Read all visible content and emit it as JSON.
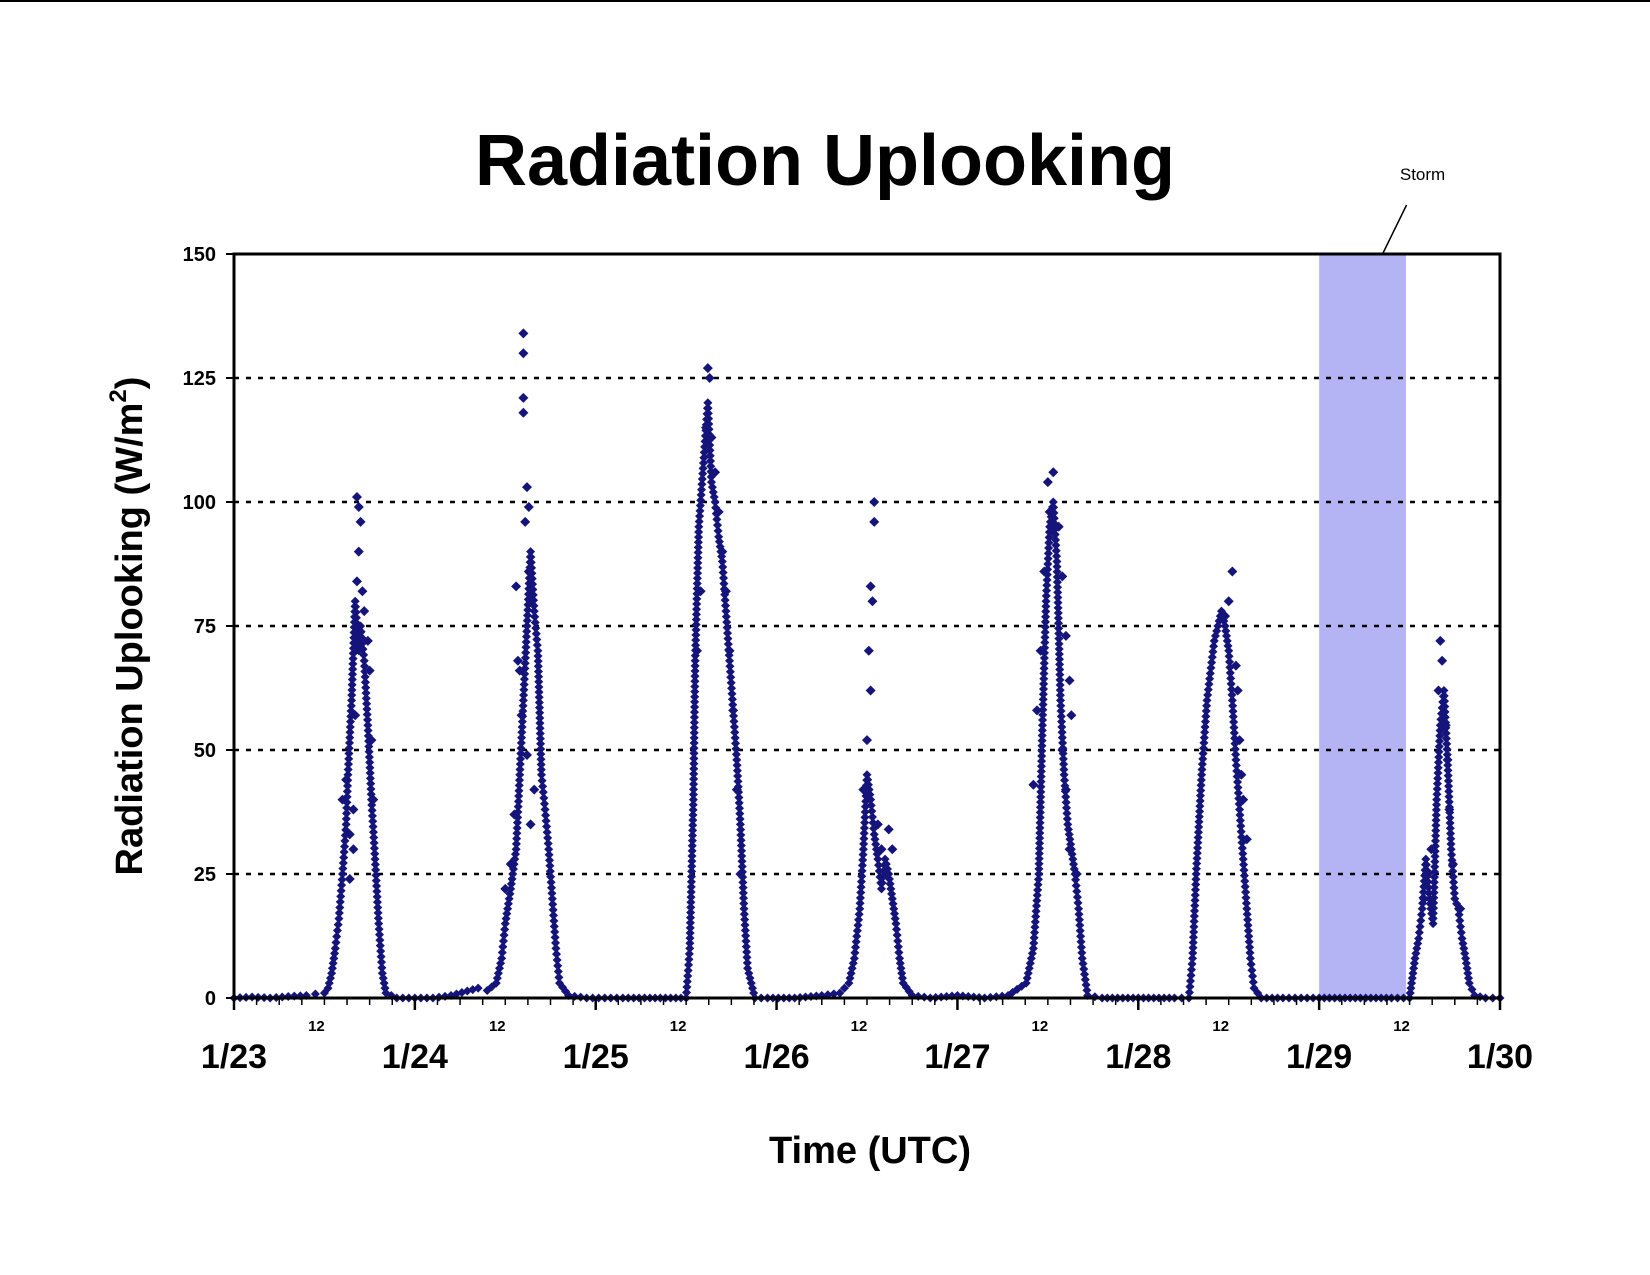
{
  "chart_data": {
    "type": "scatter",
    "title": "Radiation Uplooking",
    "xlabel": "Time (UTC)",
    "ylabel": "Radiation Uplooking (W/m",
    "ylabel_superscript": "2",
    "ylabel_close": ")",
    "ylim": [
      0,
      150
    ],
    "yticks": [
      "0",
      "25",
      "50",
      "75",
      "100",
      "125",
      "150"
    ],
    "y_grid": "dotted horizontal lines at each major tick",
    "xlim": [
      "1/23",
      "1/30"
    ],
    "x_major_ticks": [
      "1/23",
      "1/24",
      "1/25",
      "1/26",
      "1/27",
      "1/28",
      "1/29",
      "1/30"
    ],
    "x_minor_label": "12",
    "x_minor_label_count": 7,
    "marker": "diamond",
    "marker_color": "#14147a",
    "annotations": [
      {
        "text": "Storm",
        "type": "shaded-span",
        "x_start_day": 6.0,
        "x_end_day": 6.48,
        "color": "#b4b4f5"
      }
    ],
    "series": [
      {
        "x_day_start": "1/23",
        "points": [
          [
            0.0,
            0
          ],
          [
            0.1,
            0.2
          ],
          [
            0.2,
            0
          ],
          [
            0.3,
            0.3
          ],
          [
            0.4,
            0.5
          ],
          [
            0.45,
            0.8
          ],
          [
            0.5,
            1
          ],
          [
            0.52,
            2
          ],
          [
            0.54,
            5
          ],
          [
            0.56,
            10
          ],
          [
            0.58,
            16
          ],
          [
            0.6,
            25
          ],
          [
            0.62,
            35
          ],
          [
            0.63,
            45
          ],
          [
            0.65,
            60
          ],
          [
            0.67,
            80
          ],
          [
            0.69,
            70
          ],
          [
            0.7,
            75
          ],
          [
            0.72,
            68
          ],
          [
            0.74,
            55
          ],
          [
            0.76,
            40
          ],
          [
            0.78,
            28
          ],
          [
            0.8,
            15
          ],
          [
            0.82,
            5
          ],
          [
            0.84,
            1
          ],
          [
            0.9,
            0
          ],
          [
            1.0,
            0
          ],
          [
            1.1,
            0
          ],
          [
            1.2,
            0.5
          ],
          [
            1.35,
            2
          ],
          [
            1.4,
            1.5
          ],
          [
            1.45,
            3
          ],
          [
            1.48,
            8
          ],
          [
            1.5,
            15
          ],
          [
            1.53,
            22
          ],
          [
            1.56,
            30
          ],
          [
            1.58,
            45
          ],
          [
            1.6,
            60
          ],
          [
            1.62,
            75
          ],
          [
            1.64,
            90
          ],
          [
            1.66,
            78
          ],
          [
            1.68,
            70
          ],
          [
            1.7,
            45
          ],
          [
            1.72,
            38
          ],
          [
            1.74,
            30
          ],
          [
            1.76,
            20
          ],
          [
            1.78,
            10
          ],
          [
            1.8,
            3
          ],
          [
            1.85,
            0.5
          ],
          [
            1.95,
            0
          ],
          [
            2.05,
            0
          ],
          [
            2.15,
            0
          ],
          [
            2.3,
            0
          ],
          [
            2.5,
            0
          ],
          [
            2.52,
            10
          ],
          [
            2.54,
            40
          ],
          [
            2.55,
            68
          ],
          [
            2.57,
            95
          ],
          [
            2.6,
            110
          ],
          [
            2.62,
            120
          ],
          [
            2.64,
            104
          ],
          [
            2.66,
            100
          ],
          [
            2.68,
            93
          ],
          [
            2.7,
            88
          ],
          [
            2.72,
            78
          ],
          [
            2.74,
            68
          ],
          [
            2.76,
            58
          ],
          [
            2.78,
            48
          ],
          [
            2.8,
            35
          ],
          [
            2.82,
            18
          ],
          [
            2.84,
            6
          ],
          [
            2.88,
            0
          ],
          [
            2.95,
            0
          ],
          [
            3.1,
            0
          ],
          [
            3.25,
            0.5
          ],
          [
            3.35,
            1
          ],
          [
            3.4,
            3
          ],
          [
            3.43,
            8
          ],
          [
            3.46,
            18
          ],
          [
            3.48,
            30
          ],
          [
            3.5,
            45
          ],
          [
            3.52,
            40
          ],
          [
            3.54,
            33
          ],
          [
            3.56,
            28
          ],
          [
            3.58,
            22
          ],
          [
            3.6,
            28
          ],
          [
            3.62,
            25
          ],
          [
            3.64,
            20
          ],
          [
            3.66,
            15
          ],
          [
            3.68,
            8
          ],
          [
            3.7,
            3
          ],
          [
            3.75,
            0.5
          ],
          [
            3.85,
            0
          ],
          [
            4.0,
            0.5
          ],
          [
            4.15,
            0
          ],
          [
            4.28,
            0.5
          ],
          [
            4.38,
            3
          ],
          [
            4.42,
            10
          ],
          [
            4.45,
            25
          ],
          [
            4.47,
            55
          ],
          [
            4.49,
            80
          ],
          [
            4.51,
            95
          ],
          [
            4.53,
            100
          ],
          [
            4.55,
            88
          ],
          [
            4.57,
            60
          ],
          [
            4.59,
            45
          ],
          [
            4.61,
            35
          ],
          [
            4.63,
            30
          ],
          [
            4.65,
            25
          ],
          [
            4.67,
            18
          ],
          [
            4.69,
            8
          ],
          [
            4.72,
            0.5
          ],
          [
            4.8,
            0
          ],
          [
            5.0,
            0
          ],
          [
            5.2,
            0
          ],
          [
            5.28,
            0
          ],
          [
            5.3,
            8
          ],
          [
            5.32,
            25
          ],
          [
            5.35,
            45
          ],
          [
            5.38,
            60
          ],
          [
            5.42,
            72
          ],
          [
            5.46,
            78
          ],
          [
            5.48,
            75
          ],
          [
            5.5,
            70
          ],
          [
            5.52,
            60
          ],
          [
            5.54,
            48
          ],
          [
            5.56,
            38
          ],
          [
            5.58,
            28
          ],
          [
            5.6,
            18
          ],
          [
            5.62,
            8
          ],
          [
            5.64,
            2
          ],
          [
            5.68,
            0
          ],
          [
            5.8,
            0
          ],
          [
            5.9,
            0
          ],
          [
            6.0,
            0
          ],
          [
            6.2,
            0
          ],
          [
            6.4,
            0
          ],
          [
            6.5,
            0
          ],
          [
            6.53,
            8
          ],
          [
            6.55,
            12
          ],
          [
            6.57,
            18
          ],
          [
            6.59,
            28
          ],
          [
            6.61,
            20
          ],
          [
            6.63,
            15
          ],
          [
            6.65,
            40
          ],
          [
            6.67,
            55
          ],
          [
            6.69,
            62
          ],
          [
            6.71,
            48
          ],
          [
            6.73,
            30
          ],
          [
            6.75,
            20
          ],
          [
            6.77,
            18
          ],
          [
            6.79,
            12
          ],
          [
            6.81,
            8
          ],
          [
            6.83,
            3
          ],
          [
            6.86,
            0.5
          ],
          [
            6.92,
            0
          ],
          [
            7.0,
            0
          ]
        ]
      }
    ],
    "outliers": [
      [
        0.68,
        101
      ],
      [
        0.69,
        99
      ],
      [
        0.7,
        96
      ],
      [
        0.69,
        90
      ],
      [
        0.68,
        84
      ],
      [
        0.71,
        82
      ],
      [
        0.67,
        57
      ],
      [
        0.66,
        38
      ],
      [
        0.64,
        33
      ],
      [
        0.6,
        40
      ],
      [
        0.62,
        44
      ],
      [
        0.72,
        78
      ],
      [
        0.74,
        72
      ],
      [
        0.75,
        66
      ],
      [
        0.76,
        52
      ],
      [
        0.77,
        40
      ],
      [
        0.66,
        30
      ],
      [
        0.64,
        24
      ],
      [
        1.6,
        134
      ],
      [
        1.6,
        130
      ],
      [
        1.6,
        121
      ],
      [
        1.6,
        118
      ],
      [
        1.62,
        103
      ],
      [
        1.63,
        99
      ],
      [
        1.61,
        96
      ],
      [
        1.63,
        86
      ],
      [
        1.64,
        80
      ],
      [
        1.56,
        83
      ],
      [
        1.57,
        68
      ],
      [
        1.58,
        66
      ],
      [
        1.59,
        57
      ],
      [
        1.62,
        49
      ],
      [
        1.55,
        37
      ],
      [
        1.53,
        27
      ],
      [
        1.5,
        22
      ],
      [
        1.64,
        35
      ],
      [
        1.66,
        42
      ],
      [
        2.62,
        127
      ],
      [
        2.63,
        125
      ],
      [
        2.61,
        115
      ],
      [
        2.64,
        113
      ],
      [
        2.66,
        106
      ],
      [
        2.68,
        98
      ],
      [
        2.7,
        90
      ],
      [
        2.72,
        82
      ],
      [
        2.74,
        70
      ],
      [
        2.76,
        58
      ],
      [
        2.78,
        42
      ],
      [
        2.8,
        25
      ],
      [
        2.56,
        70
      ],
      [
        2.58,
        82
      ],
      [
        3.54,
        100
      ],
      [
        3.54,
        96
      ],
      [
        3.52,
        83
      ],
      [
        3.53,
        80
      ],
      [
        3.51,
        70
      ],
      [
        3.52,
        62
      ],
      [
        3.5,
        52
      ],
      [
        3.48,
        42
      ],
      [
        3.56,
        35
      ],
      [
        3.58,
        30
      ],
      [
        3.62,
        34
      ],
      [
        3.64,
        30
      ],
      [
        4.53,
        106
      ],
      [
        4.5,
        104
      ],
      [
        4.51,
        98
      ],
      [
        4.56,
        95
      ],
      [
        4.58,
        85
      ],
      [
        4.6,
        73
      ],
      [
        4.62,
        64
      ],
      [
        4.63,
        57
      ],
      [
        4.48,
        86
      ],
      [
        4.46,
        70
      ],
      [
        4.44,
        58
      ],
      [
        4.42,
        43
      ],
      [
        4.58,
        50
      ],
      [
        4.6,
        42
      ],
      [
        4.62,
        30
      ],
      [
        4.66,
        25
      ],
      [
        5.52,
        86
      ],
      [
        5.5,
        80
      ],
      [
        5.48,
        77
      ],
      [
        5.54,
        67
      ],
      [
        5.55,
        62
      ],
      [
        5.56,
        52
      ],
      [
        5.57,
        45
      ],
      [
        5.58,
        40
      ],
      [
        5.6,
        32
      ],
      [
        6.67,
        72
      ],
      [
        6.68,
        68
      ],
      [
        6.66,
        62
      ],
      [
        6.7,
        55
      ],
      [
        6.71,
        48
      ],
      [
        6.72,
        38
      ],
      [
        6.74,
        27
      ],
      [
        6.62,
        30
      ],
      [
        6.6,
        25
      ],
      [
        6.58,
        20
      ],
      [
        6.78,
        18
      ]
    ]
  }
}
